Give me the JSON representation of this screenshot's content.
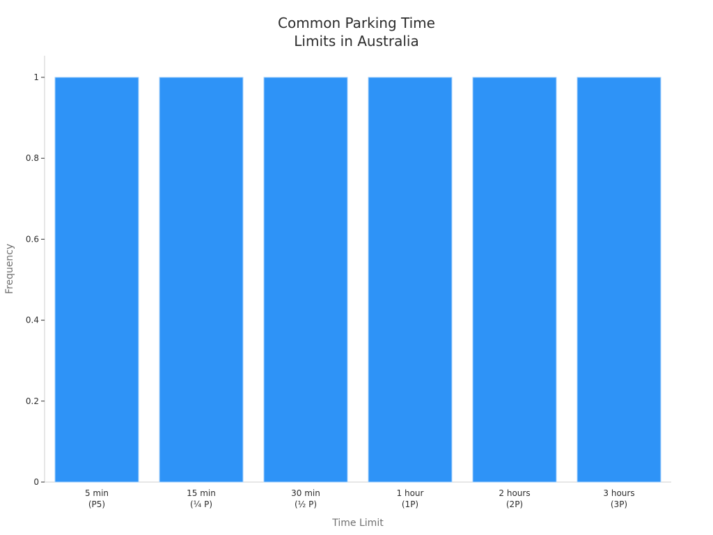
{
  "chart_data": {
    "type": "bar",
    "title_lines": [
      "Common Parking Time",
      "Limits in Australia"
    ],
    "xlabel": "Time Limit",
    "ylabel": "Frequency",
    "categories": [
      [
        "5 min",
        "(P5)"
      ],
      [
        "15 min",
        "(¼ P)"
      ],
      [
        "30 min",
        "(½ P)"
      ],
      [
        "1 hour",
        "(1P)"
      ],
      [
        "2 hours",
        "(2P)"
      ],
      [
        "3 hours",
        "(3P)"
      ]
    ],
    "values": [
      1,
      1,
      1,
      1,
      1,
      1
    ],
    "ylim": [
      0,
      1
    ],
    "yticks": [
      0,
      0.2,
      0.4,
      0.6,
      0.8,
      1
    ],
    "ytick_labels": [
      "0",
      "0.2",
      "0.4",
      "0.6",
      "0.8",
      "1"
    ],
    "grid": false,
    "legend": "none",
    "colors": {
      "bar": "#2e93f7",
      "bar_edge": "#a9d3fb",
      "axis": "#cfcfcf"
    }
  }
}
